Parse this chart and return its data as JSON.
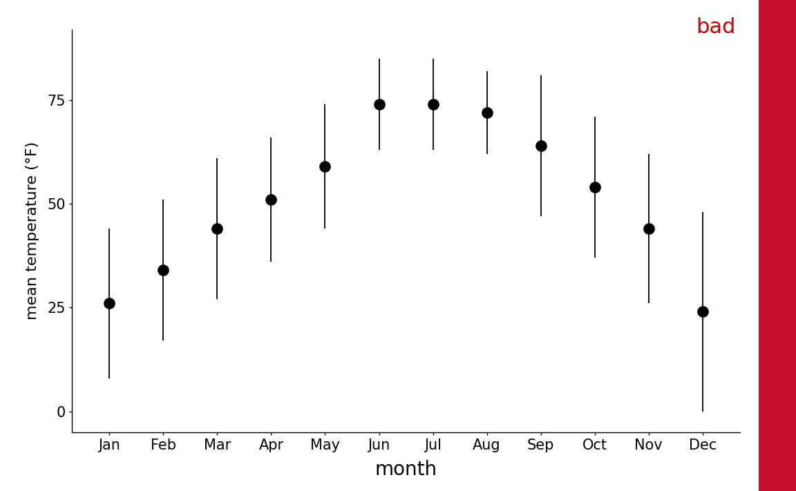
{
  "months": [
    "Jan",
    "Feb",
    "Mar",
    "Apr",
    "May",
    "Jun",
    "Jul",
    "Aug",
    "Sep",
    "Oct",
    "Nov",
    "Dec"
  ],
  "means": [
    26,
    34,
    44,
    51,
    59,
    74,
    74,
    72,
    64,
    54,
    44,
    24
  ],
  "errors": [
    18,
    17,
    17,
    15,
    15,
    11,
    11,
    10,
    17,
    17,
    18,
    24
  ],
  "ylim": [
    -5,
    92
  ],
  "yticks": [
    0,
    25,
    50,
    75
  ],
  "ylabel": "mean temperature (°F)",
  "xlabel": "month",
  "bad_label": "bad",
  "bad_color": "#cc0000",
  "red_bar_color": "#c8102e",
  "marker_size": 11,
  "marker_color": "#000000",
  "line_color": "#000000",
  "elinewidth": 1.3,
  "capsize": 0,
  "background_color": "#ffffff",
  "tick_fontsize": 15,
  "xlabel_fontsize": 20,
  "ylabel_fontsize": 16,
  "bad_fontsize": 22
}
